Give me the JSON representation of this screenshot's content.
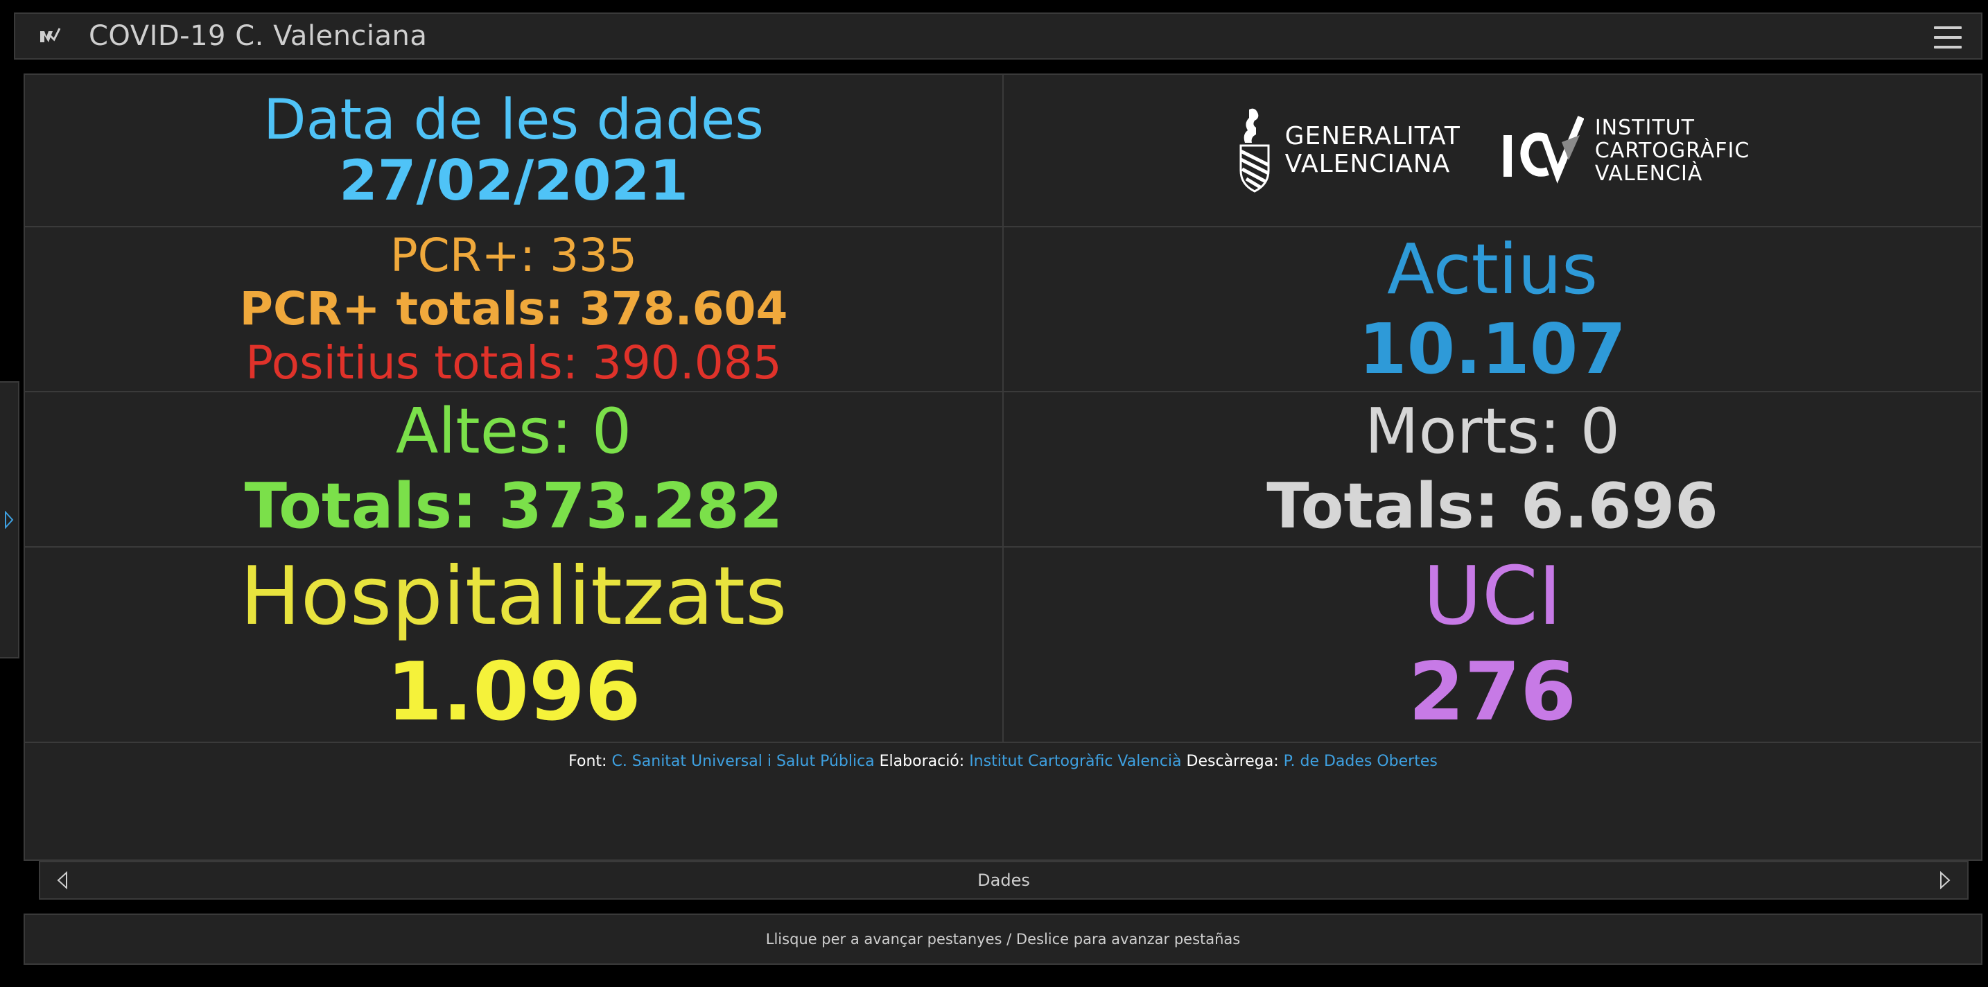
{
  "header": {
    "title": "COVID-19 C. Valenciana",
    "app_icon": "dashboard-logo-icon",
    "menu_icon": "hamburger-menu-icon"
  },
  "data_section": {
    "label": "Data de les dades",
    "date": "27/02/2021"
  },
  "logos": {
    "gv_line1": "GENERALITAT",
    "gv_line2": "VALENCIANA",
    "icv_line1": "INSTITUT",
    "icv_line2": "CARTOGRÀFIC",
    "icv_line3": "VALENCIÀ"
  },
  "pcr": {
    "daily": "PCR+: 335",
    "total": "PCR+ totals: 378.604",
    "positives_total": "Positius totals: 390.085"
  },
  "actius": {
    "label": "Actius",
    "value": "10.107"
  },
  "altes": {
    "daily": "Altes: 0",
    "total": "Totals: 373.282"
  },
  "morts": {
    "daily": "Morts: 0",
    "total": "Totals: 6.696"
  },
  "hospitalitzats": {
    "label": "Hospitalitzats",
    "value": "1.096"
  },
  "uci": {
    "label": "UCI",
    "value": "276"
  },
  "credits": {
    "font_label": "Font:",
    "font_link": "C. Sanitat Universal i Salut Pública",
    "elaboracio_label": "Elaboració:",
    "elaboracio_link": "Institut Cartogràfic Valencià",
    "descarrega_label": "Descàrrega:",
    "descarrega_link": "P. de Dades Obertes"
  },
  "pager": {
    "title": "Dades",
    "prev_icon": "chevron-left-icon",
    "next_icon": "chevron-right-icon"
  },
  "hint": {
    "text": "Llisque per a avançar pestanyes / Deslice para avanzar pestañas"
  },
  "colors": {
    "date": "#4fc3f7",
    "pcr": "#f0a93c",
    "positives": "#e0322a",
    "actius": "#2e9ad8",
    "altes": "#7be04a",
    "morts": "#d6d6d6",
    "hospitalitzats": "#f5f23a",
    "uci": "#c77ae6",
    "link": "#3ea0e0",
    "panel_bg": "#232323"
  }
}
